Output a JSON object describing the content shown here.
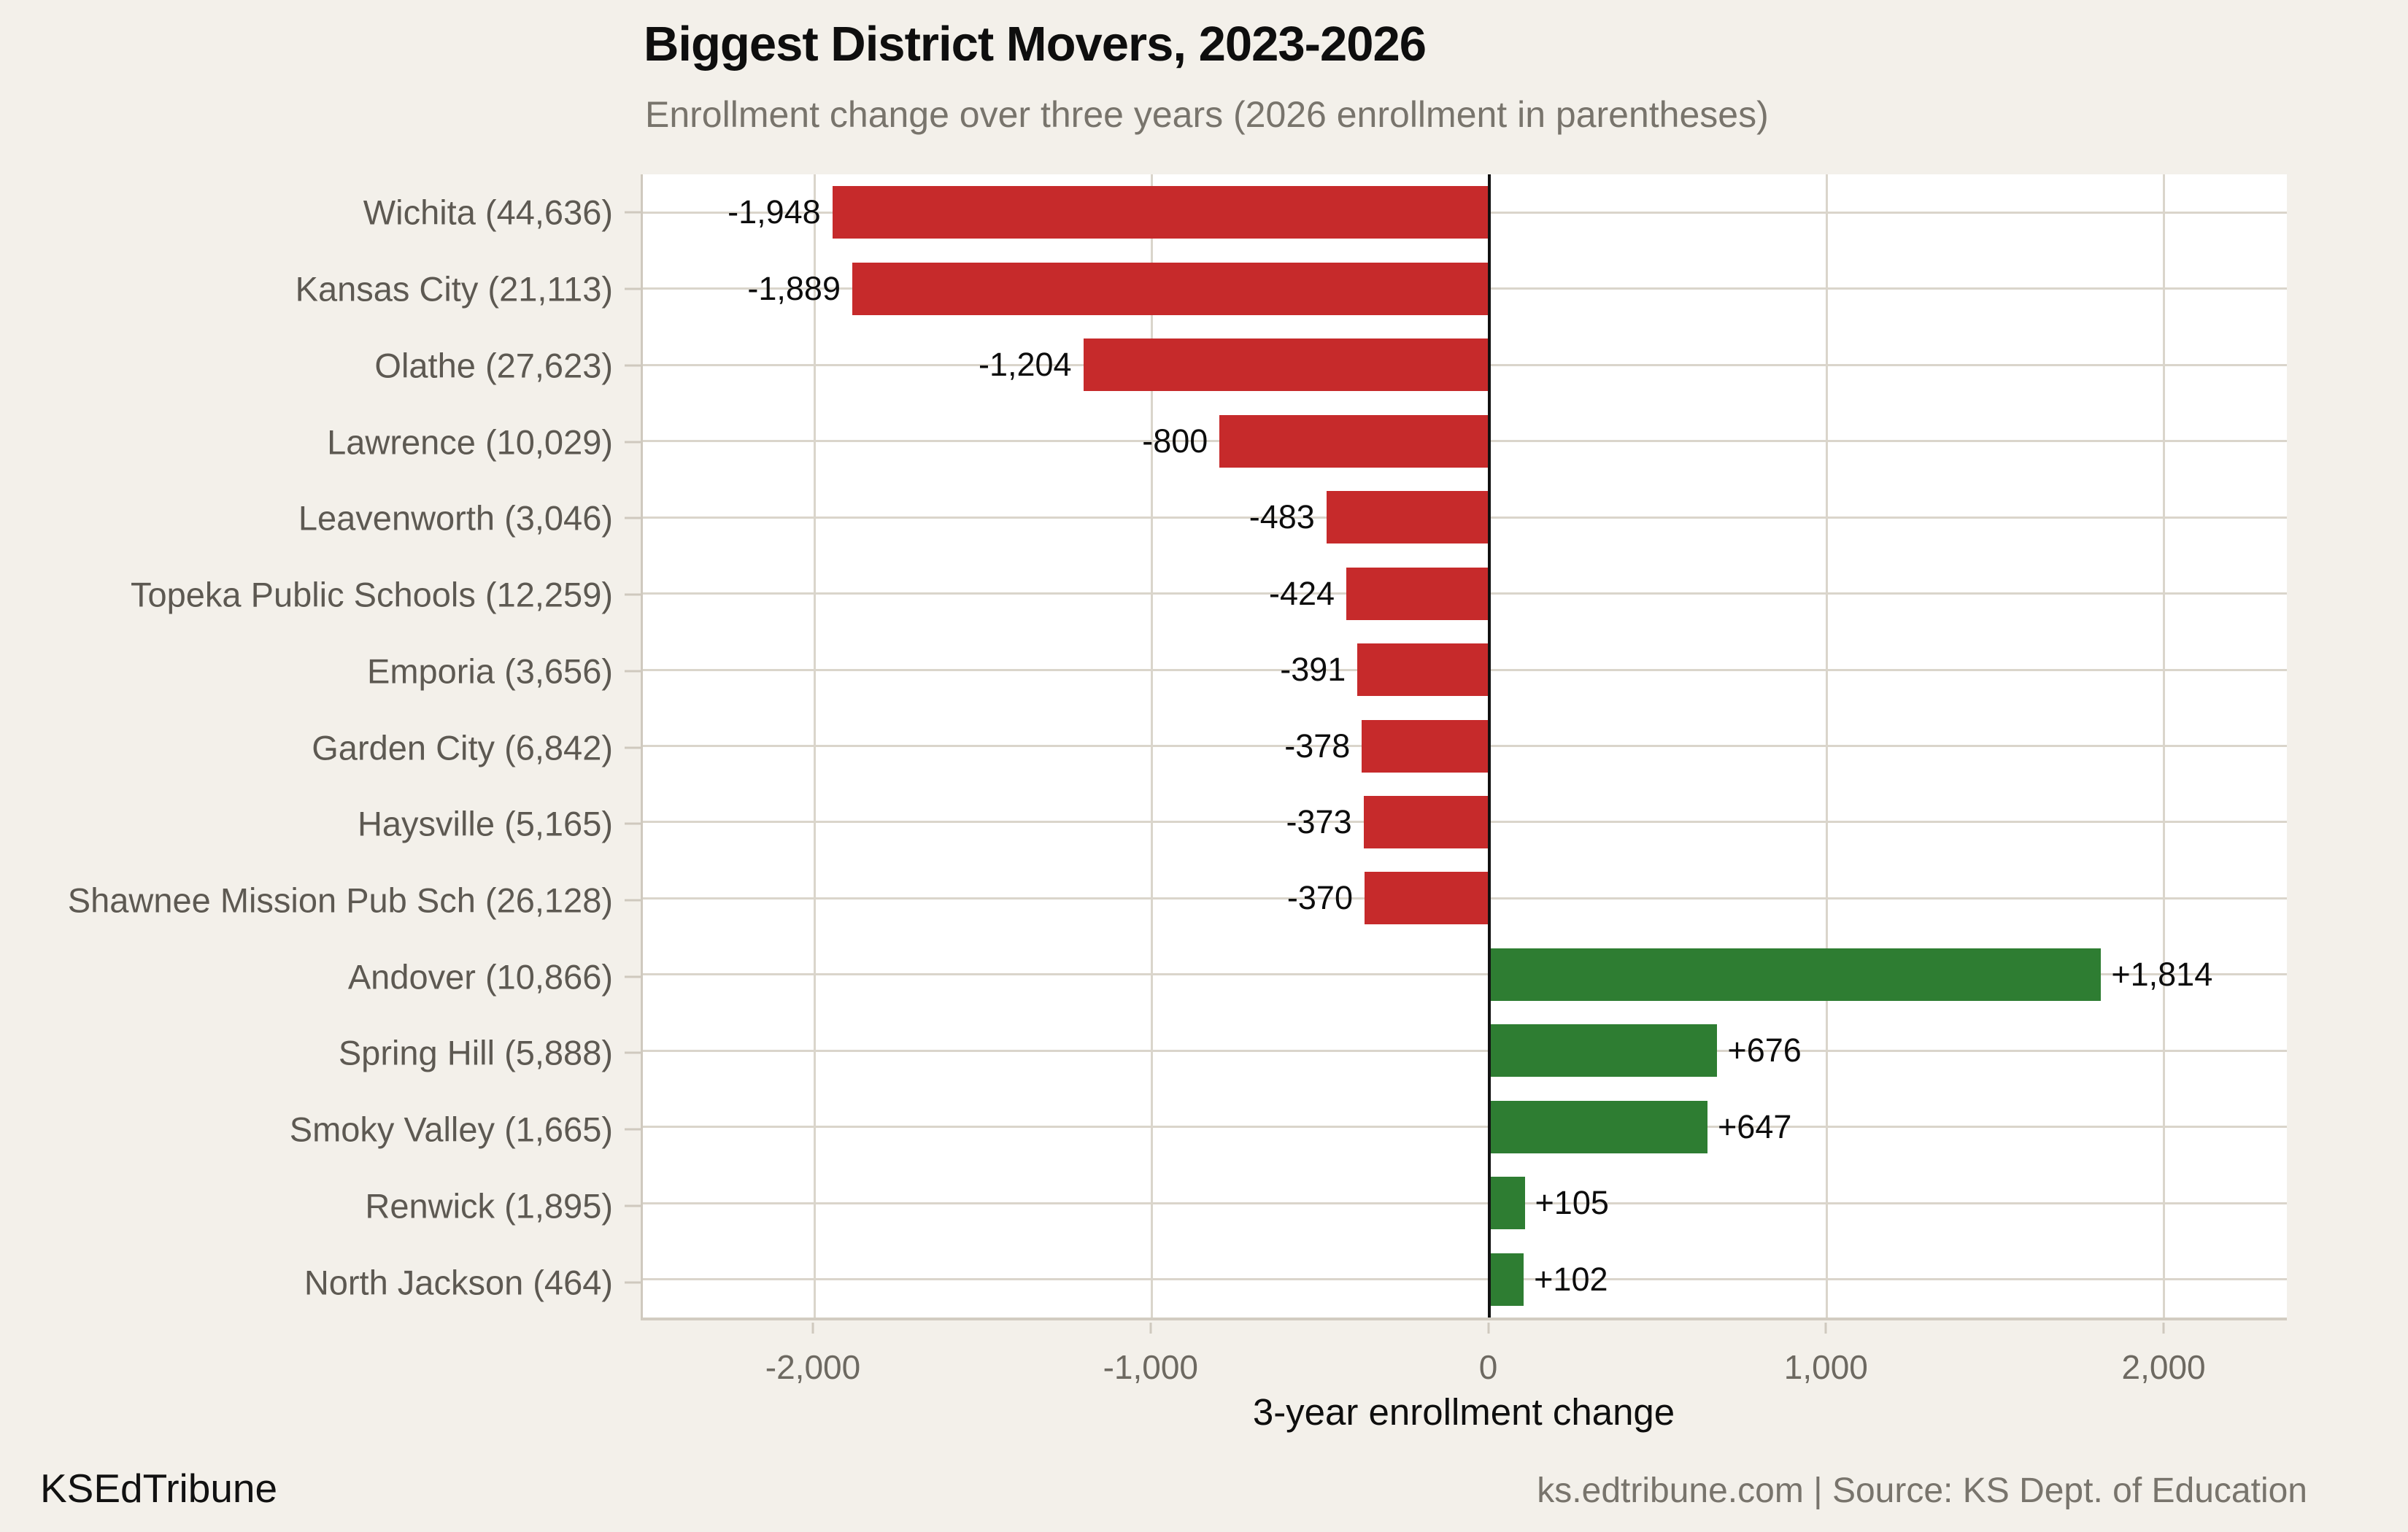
{
  "header": {
    "title": "Biggest District Movers, 2023-2026",
    "subtitle": "Enrollment change over three years (2026 enrollment in parentheses)"
  },
  "footer": {
    "brand": "KSEdTribune",
    "source": "ks.edtribune.com | Source: KS Dept. of Education"
  },
  "chart_data": {
    "type": "bar",
    "orientation": "horizontal",
    "title": "Biggest District Movers, 2023-2026",
    "subtitle": "Enrollment change over three years (2026 enrollment in parentheses)",
    "xlabel": "3-year enrollment change",
    "categories": [
      "Wichita (44,636)",
      "Kansas City (21,113)",
      "Olathe (27,623)",
      "Lawrence (10,029)",
      "Leavenworth (3,046)",
      "Topeka Public Schools (12,259)",
      "Emporia (3,656)",
      "Garden City (6,842)",
      "Haysville (5,165)",
      "Shawnee Mission Pub Sch (26,128)",
      "Andover (10,866)",
      "Spring Hill (5,888)",
      "Smoky Valley (1,665)",
      "Renwick (1,895)",
      "North Jackson (464)"
    ],
    "values": [
      -1948,
      -1889,
      -1204,
      -800,
      -483,
      -424,
      -391,
      -378,
      -373,
      -370,
      1814,
      676,
      647,
      105,
      102
    ],
    "value_labels": [
      "-1,948",
      "-1,889",
      "-1,204",
      "-800",
      "-483",
      "-424",
      "-391",
      "-378",
      "-373",
      "-370",
      "+1,814",
      "+676",
      "+647",
      "+105",
      "+102"
    ],
    "x_ticks": [
      {
        "value": -2000,
        "label": "-2,000"
      },
      {
        "value": -1000,
        "label": "-1,000"
      },
      {
        "value": 0,
        "label": "0"
      },
      {
        "value": 1000,
        "label": "1,000"
      },
      {
        "value": 2000,
        "label": "2,000"
      }
    ],
    "xlim": [
      -2510,
      2365
    ],
    "grid": true,
    "legend": null,
    "colors": {
      "negative_bar": "#c62a2b",
      "positive_bar": "#2e7d32",
      "background": "#f3f0ea",
      "panel_background": "#ffffff",
      "gridline": "#dad5cb",
      "zero_line": "#121212"
    }
  }
}
